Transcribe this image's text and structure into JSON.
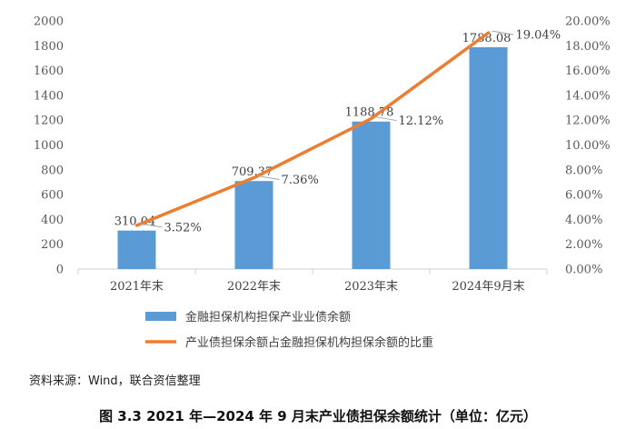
{
  "chart_data": {
    "type": "bar",
    "categories": [
      "2021年末",
      "2022年末",
      "2023年末",
      "2024年9月末"
    ],
    "series": [
      {
        "name": "金融担保机构担保产业业债余额",
        "chart_type": "bar",
        "axis": "left",
        "values": [
          310.04,
          709.37,
          1188.78,
          1788.08
        ],
        "labels": [
          "310.04",
          "709.37",
          "1188.78",
          "1788.08"
        ],
        "color": "#5B9BD5"
      },
      {
        "name": "产业债担保余额占金融担保机构担保余额的比重",
        "chart_type": "line",
        "axis": "right",
        "values": [
          3.52,
          7.36,
          12.12,
          19.04
        ],
        "labels": [
          "3.52%",
          "7.36%",
          "12.12%",
          "19.04%"
        ],
        "color": "#ED7D31"
      }
    ],
    "y_left": {
      "range": [
        0,
        2000
      ],
      "ticks": [
        "0",
        "200",
        "400",
        "600",
        "800",
        "1000",
        "1200",
        "1400",
        "1600",
        "1800",
        "2000"
      ]
    },
    "y_right": {
      "range": [
        0,
        20
      ],
      "ticks": [
        "0.00%",
        "2.00%",
        "4.00%",
        "6.00%",
        "8.00%",
        "10.00%",
        "12.00%",
        "14.00%",
        "16.00%",
        "18.00%",
        "20.00%"
      ]
    },
    "grid": false,
    "legend_position": "bottom"
  },
  "source_note": "资料来源：Wind，联合资信整理",
  "caption": "图 3.3    2021 年—2024 年 9 月末产业债担保余额统计（单位：亿元）"
}
